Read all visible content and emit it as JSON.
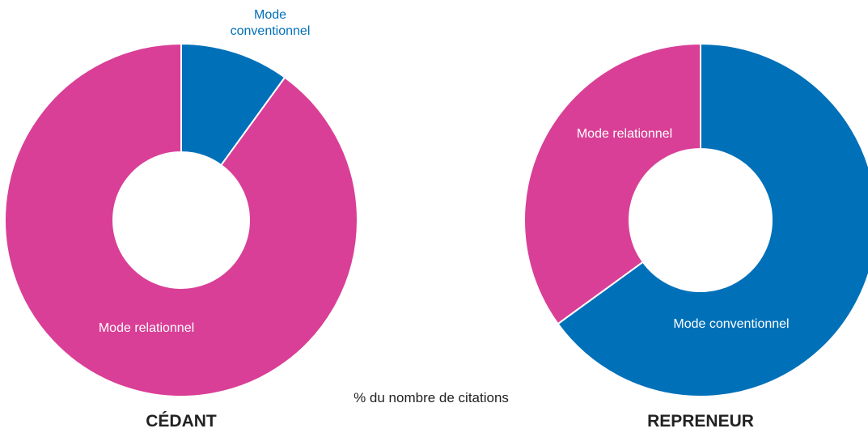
{
  "colors": {
    "conventionnel": "#0070b9",
    "relationnel": "#d93f96",
    "separator": "#ffffff",
    "text_dark": "#222222"
  },
  "caption": "% du nombre de citations",
  "chart_data": [
    {
      "type": "pie",
      "variant": "donut",
      "title": "CÉDANT",
      "categories": [
        "Mode conventionnel",
        "Mode relationnel"
      ],
      "values": [
        10,
        90
      ],
      "colors": [
        "#0070b9",
        "#d93f96"
      ],
      "labels": [
        {
          "lines": [
            "Mode",
            "conventionnel"
          ],
          "placement": "outside",
          "color": "#0070b9"
        },
        {
          "lines": [
            "Mode relationnel"
          ],
          "placement": "inside",
          "color": "#ffffff"
        }
      ]
    },
    {
      "type": "pie",
      "variant": "donut",
      "title": "REPRENEUR",
      "categories": [
        "Mode conventionnel",
        "Mode relationnel"
      ],
      "values": [
        65,
        35
      ],
      "colors": [
        "#0070b9",
        "#d93f96"
      ],
      "labels": [
        {
          "lines": [
            "Mode conventionnel"
          ],
          "placement": "inside",
          "color": "#ffffff"
        },
        {
          "lines": [
            "Mode relationnel"
          ],
          "placement": "inside",
          "color": "#ffffff"
        }
      ]
    }
  ]
}
